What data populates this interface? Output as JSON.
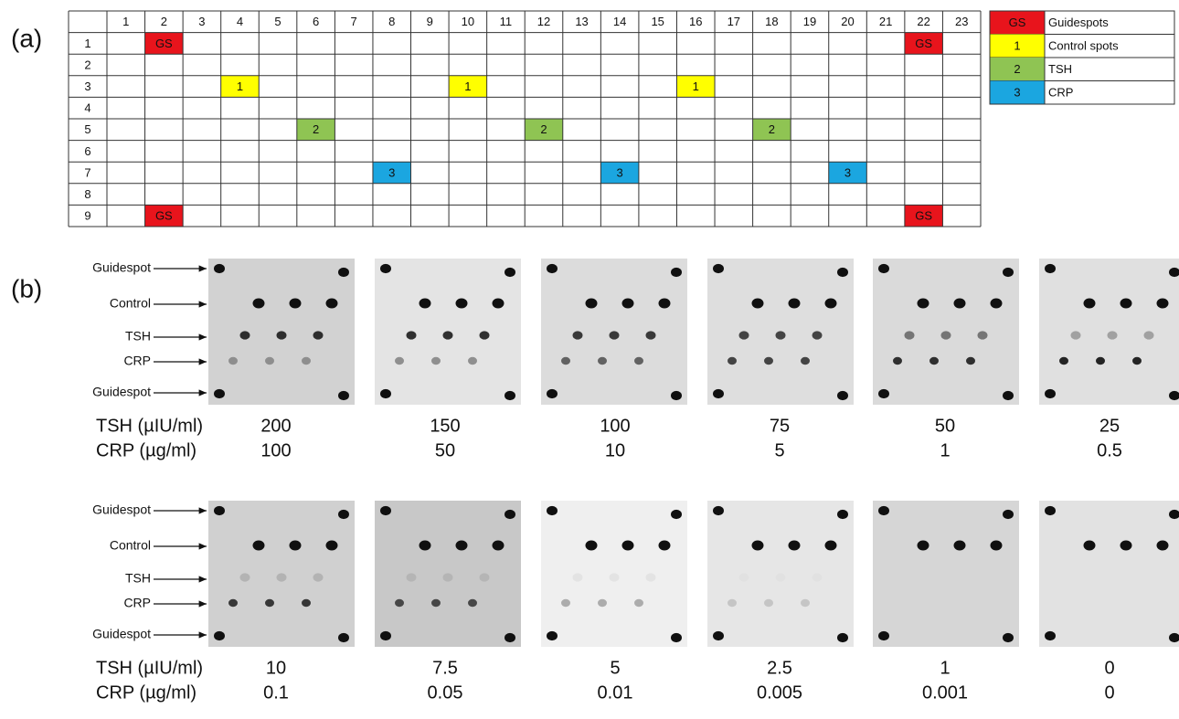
{
  "panel_a": {
    "label": "(a)",
    "columns": [
      "1",
      "2",
      "3",
      "4",
      "5",
      "6",
      "7",
      "8",
      "9",
      "10",
      "11",
      "12",
      "13",
      "14",
      "15",
      "16",
      "17",
      "18",
      "19",
      "20",
      "21",
      "22",
      "23"
    ],
    "rows": [
      "1",
      "2",
      "3",
      "4",
      "5",
      "6",
      "7",
      "8",
      "9"
    ],
    "spots": [
      {
        "text": "GS",
        "row": 1,
        "column": 2
      },
      {
        "text": "GS",
        "row": 1,
        "column": 22
      },
      {
        "text": "1",
        "row": 3,
        "column": 4
      },
      {
        "text": "1",
        "row": 3,
        "column": 10
      },
      {
        "text": "1",
        "row": 3,
        "column": 16
      },
      {
        "text": "2",
        "row": 5,
        "column": 6
      },
      {
        "text": "2",
        "row": 5,
        "column": 12
      },
      {
        "text": "2",
        "row": 5,
        "column": 18
      },
      {
        "text": "3",
        "row": 7,
        "column": 8
      },
      {
        "text": "3",
        "row": 7,
        "column": 14
      },
      {
        "text": "3",
        "row": 7,
        "column": 20
      },
      {
        "text": "GS",
        "row": 9,
        "column": 2
      },
      {
        "text": "GS",
        "row": 9,
        "column": 22
      }
    ],
    "legend": [
      {
        "key": "GS",
        "label": "Guidespots",
        "color": "#e8141c"
      },
      {
        "key": "1",
        "label": "Control spots",
        "color": "#ffff00"
      },
      {
        "key": "2",
        "label": "TSH",
        "color": "#8fc453"
      },
      {
        "key": "3",
        "label": "CRP",
        "color": "#1ba6e0"
      }
    ]
  },
  "panel_b": {
    "label": "(b)",
    "row_labels": [
      "Guidespot",
      "Control",
      "TSH",
      "CRP",
      "Guidespot"
    ],
    "measures": [
      "TSH (µIU/ml)",
      "CRP (µg/ml)"
    ],
    "blocks": [
      {
        "tsh": [
          200,
          150,
          100,
          75,
          50,
          25
        ],
        "crp": [
          100,
          50,
          10,
          5,
          1,
          0.5
        ]
      },
      {
        "tsh": [
          10,
          7.5,
          5,
          2.5,
          1,
          0
        ],
        "crp": [
          0.1,
          0.05,
          0.01,
          0.005,
          0.001,
          0
        ]
      }
    ]
  }
}
